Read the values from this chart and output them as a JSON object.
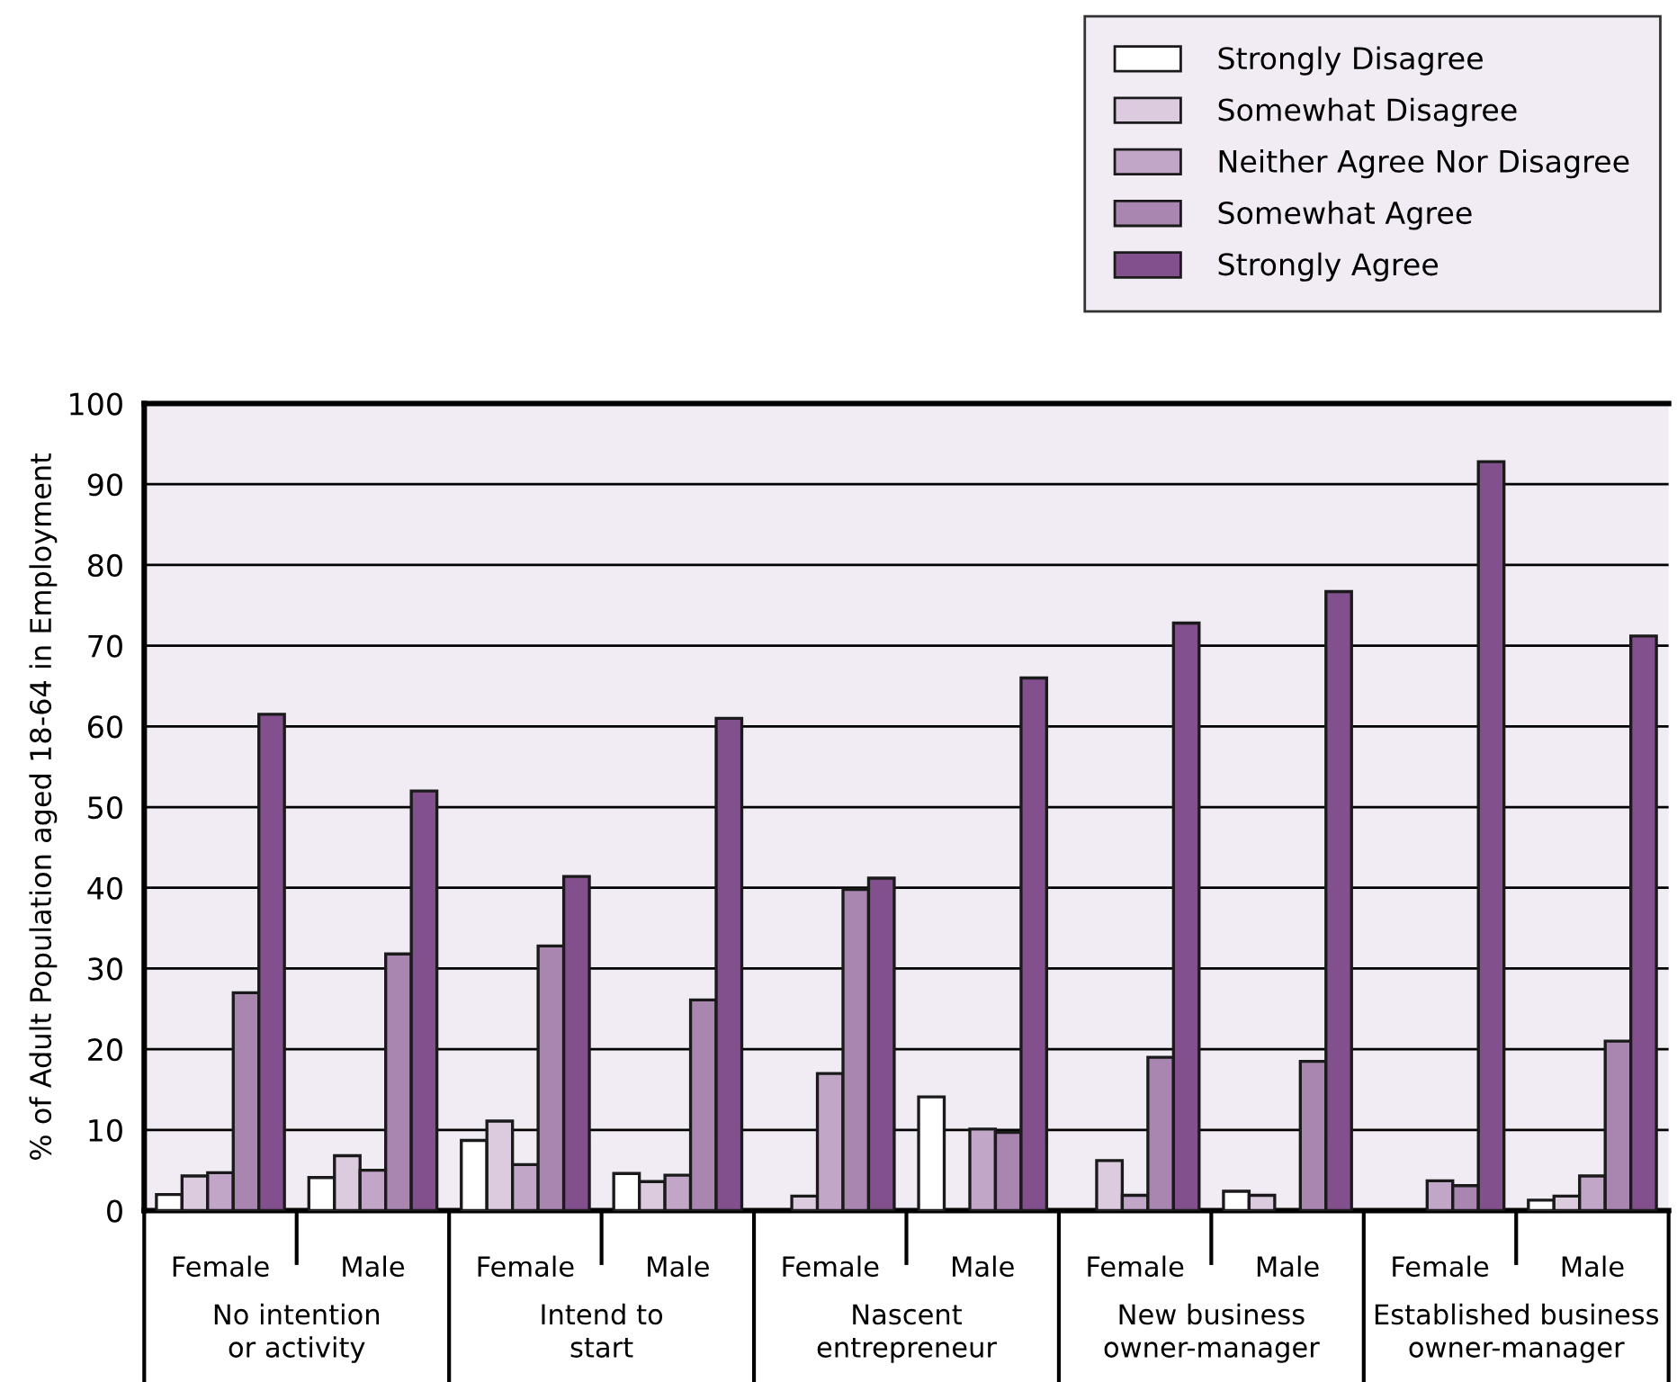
{
  "chart_data": {
    "type": "bar",
    "ylabel": "% of Adult Population aged 18-64 in Employment",
    "categories": [
      "Female",
      "Male",
      "Female",
      "Male",
      "Female",
      "Male",
      "Female",
      "Male",
      "Female",
      "Male"
    ],
    "annotations": [
      "No intention\nor activity",
      "Intend to\nstart",
      "Nascent\nentrepreneur",
      "New business\nowner-manager",
      "Established business\nowner-manager"
    ],
    "series": [
      {
        "name": "Strongly Disagree",
        "color": "#ffffff",
        "values": [
          2.0,
          4.1,
          8.7,
          4.6,
          null,
          14.1,
          null,
          2.4,
          null,
          1.3
        ]
      },
      {
        "name": "Somewhat Disagree",
        "color": "#dccbdf",
        "values": [
          4.3,
          6.8,
          11.1,
          3.6,
          1.8,
          null,
          6.2,
          1.9,
          null,
          1.8
        ]
      },
      {
        "name": "Neither Agree Nor Disagree",
        "color": "#c2a6c7",
        "values": [
          4.7,
          5.0,
          5.7,
          4.4,
          17.0,
          10.1,
          1.9,
          null,
          3.7,
          4.3
        ]
      },
      {
        "name": "Somewhat Agree",
        "color": "#a886b0",
        "values": [
          27.0,
          31.8,
          32.8,
          26.1,
          39.8,
          9.7,
          19.0,
          18.5,
          3.1,
          21.0
        ]
      },
      {
        "name": "Strongly Agree",
        "color": "#82508c",
        "values": [
          61.5,
          52.0,
          41.4,
          61.0,
          41.2,
          66.0,
          72.8,
          76.7,
          92.8,
          71.2
        ]
      }
    ],
    "ylim": [
      0,
      100
    ],
    "yticks": [
      0,
      10,
      20,
      30,
      40,
      50,
      60,
      70,
      80,
      90,
      100
    ],
    "grid": "y",
    "legend": "top right"
  }
}
